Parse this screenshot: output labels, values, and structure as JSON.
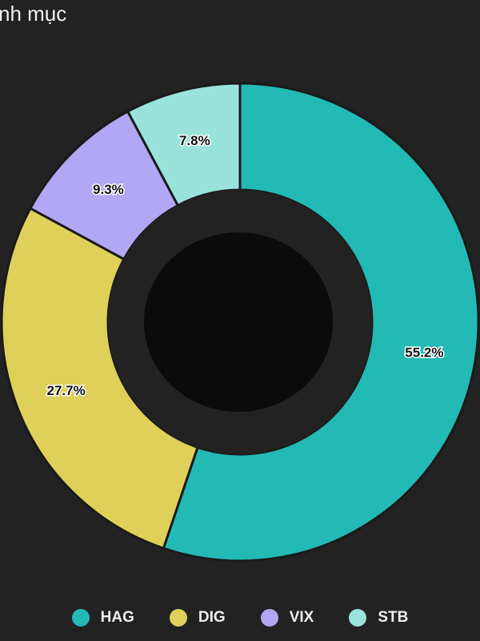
{
  "header": {
    "title": "nh mục"
  },
  "chart_data": {
    "type": "pie",
    "donut": true,
    "categories": [
      "HAG",
      "DIG",
      "VIX",
      "STB"
    ],
    "values": [
      55.2,
      27.7,
      9.3,
      7.8
    ],
    "labels": [
      "55.2%",
      "27.7%",
      "9.3%",
      "7.8%"
    ],
    "colors": [
      "#23bab5",
      "#dfd059",
      "#b2a7f4",
      "#99e3db"
    ],
    "start_angle": "top",
    "direction": "clockwise",
    "legend_position": "bottom"
  },
  "legend": {
    "items": [
      {
        "label": "HAG",
        "color": "#23bab5"
      },
      {
        "label": "DIG",
        "color": "#dfd059"
      },
      {
        "label": "VIX",
        "color": "#b2a7f4"
      },
      {
        "label": "STB",
        "color": "#99e3db"
      }
    ]
  }
}
